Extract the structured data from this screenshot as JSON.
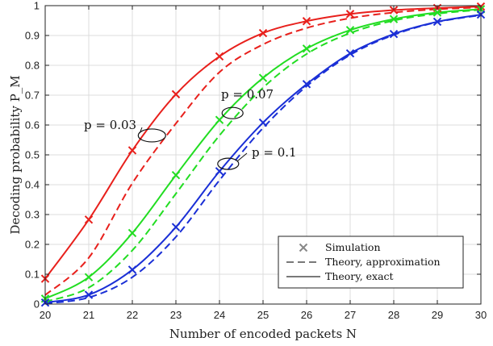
{
  "chart_data": {
    "type": "line",
    "xlabel": "Number of encoded packets N",
    "ylabel": "Decoding probability P_M",
    "xlim": [
      20,
      30
    ],
    "ylim": [
      0,
      1
    ],
    "xticks": [
      20,
      21,
      22,
      23,
      24,
      25,
      26,
      27,
      28,
      29,
      30
    ],
    "yticks": [
      0,
      0.1,
      0.2,
      0.3,
      0.4,
      0.5,
      0.6,
      0.7,
      0.8,
      0.9,
      1
    ],
    "ytick_labels": [
      "0",
      "0.1",
      "0.2",
      "0.3",
      "0.4",
      "0.5",
      "0.6",
      "0.7",
      "0.8",
      "0.9",
      "1"
    ],
    "grid": true,
    "legend_position": "bottom-right",
    "legend": [
      {
        "label": "Simulation",
        "style": "marker-x"
      },
      {
        "label": "Theory, approximation",
        "style": "dashed"
      },
      {
        "label": "Theory, exact",
        "style": "solid"
      }
    ],
    "x": [
      20,
      21,
      22,
      23,
      24,
      25,
      26,
      27,
      28,
      29,
      30
    ],
    "series": [
      {
        "name": "p = 0.03",
        "color": "#e8201c",
        "exact": [
          0.085,
          0.283,
          0.515,
          0.703,
          0.83,
          0.908,
          0.948,
          0.972,
          0.985,
          0.992,
          0.997
        ],
        "approximation": [
          0.03,
          0.155,
          0.405,
          0.605,
          0.777,
          0.87,
          0.925,
          0.958,
          0.977,
          0.988,
          0.994
        ],
        "simulation": [
          0.085,
          0.283,
          0.515,
          0.703,
          0.83,
          0.908,
          0.948,
          0.972,
          0.985,
          0.992,
          0.997
        ]
      },
      {
        "name": "p = 0.07",
        "color": "#22dd22",
        "exact": [
          0.018,
          0.09,
          0.238,
          0.432,
          0.617,
          0.758,
          0.856,
          0.918,
          0.955,
          0.977,
          0.988
        ],
        "approximation": [
          0.008,
          0.055,
          0.18,
          0.37,
          0.565,
          0.725,
          0.838,
          0.908,
          0.95,
          0.973,
          0.986
        ],
        "simulation": [
          0.018,
          0.09,
          0.238,
          0.432,
          0.617,
          0.758,
          0.856,
          0.918,
          0.955,
          0.977,
          0.988
        ]
      },
      {
        "name": "p = 0.1",
        "color": "#1a2fd6",
        "exact": [
          0.005,
          0.031,
          0.115,
          0.258,
          0.445,
          0.608,
          0.737,
          0.84,
          0.905,
          0.946,
          0.97
        ],
        "approximation": [
          0.002,
          0.022,
          0.09,
          0.225,
          0.415,
          0.59,
          0.73,
          0.835,
          0.902,
          0.945,
          0.968
        ],
        "simulation": [
          0.005,
          0.031,
          0.115,
          0.258,
          0.445,
          0.608,
          0.737,
          0.84,
          0.905,
          0.946,
          0.97
        ]
      }
    ],
    "annotations": [
      {
        "text": "p = 0.03",
        "series": 0
      },
      {
        "text": "p = 0.07",
        "series": 1
      },
      {
        "text": "p = 0.1",
        "series": 2
      }
    ]
  }
}
